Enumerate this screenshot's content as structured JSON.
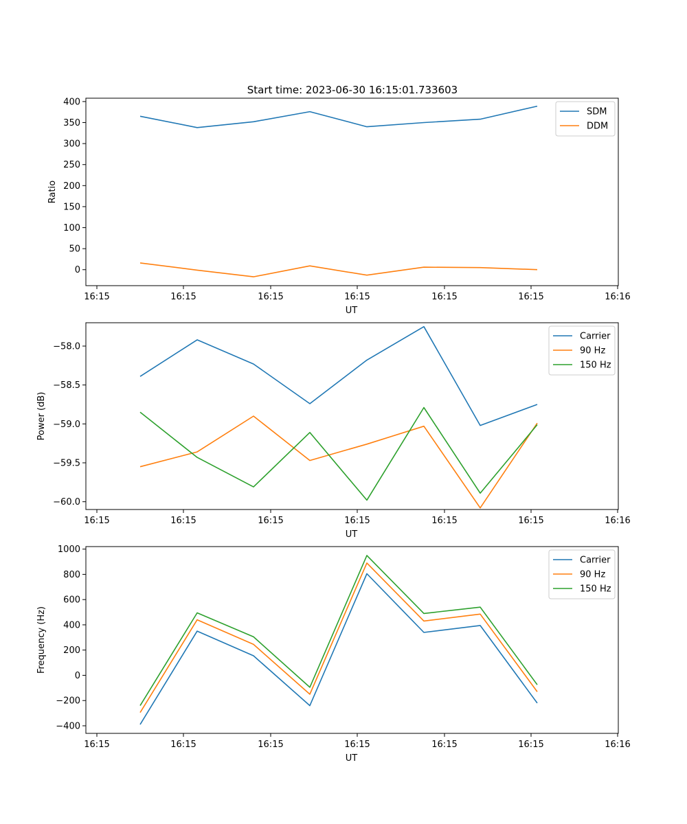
{
  "figure_title": "Start time: 2023-06-30 16:15:01.733603",
  "chart_data": [
    {
      "type": "line",
      "title": "Start time: 2023-06-30 16:15:01.733603",
      "xlabel": "UT",
      "ylabel": "Ratio",
      "x_tick_labels": [
        "16:15",
        "16:15",
        "16:15",
        "16:15",
        "16:15",
        "16:15",
        "16:16"
      ],
      "y_ticks": [
        0,
        50,
        100,
        150,
        200,
        250,
        300,
        350,
        400
      ],
      "ylim": [
        -38,
        408
      ],
      "legend_position": "upper right",
      "series": [
        {
          "name": "SDM",
          "color": "#1f77b4",
          "values": [
            365,
            338,
            352,
            376,
            340,
            350,
            358,
            389
          ]
        },
        {
          "name": "DDM",
          "color": "#ff7f0e",
          "values": [
            16,
            -1,
            -17,
            9,
            -13,
            6,
            5,
            0
          ]
        }
      ]
    },
    {
      "type": "line",
      "title": "",
      "xlabel": "UT",
      "ylabel": "Power (dB)",
      "x_tick_labels": [
        "16:15",
        "16:15",
        "16:15",
        "16:15",
        "16:15",
        "16:15",
        "16:16"
      ],
      "y_ticks": [
        -60.0,
        -59.5,
        -59.0,
        -58.5,
        -58.0
      ],
      "y_tick_labels": [
        "−60.0",
        "−59.5",
        "−59.0",
        "−58.5",
        "−58.0"
      ],
      "ylim": [
        -60.1,
        -57.7
      ],
      "legend_position": "upper right",
      "series": [
        {
          "name": "Carrier",
          "color": "#1f77b4",
          "values": [
            -58.39,
            -57.92,
            -58.23,
            -58.74,
            -58.18,
            -57.75,
            -59.02,
            -58.75
          ]
        },
        {
          "name": "90 Hz",
          "color": "#ff7f0e",
          "values": [
            -59.55,
            -59.36,
            -58.9,
            -59.47,
            -59.26,
            -59.03,
            -60.08,
            -58.99
          ]
        },
        {
          "name": "150 Hz",
          "color": "#2ca02c",
          "values": [
            -58.85,
            -59.43,
            -59.81,
            -59.11,
            -59.98,
            -58.79,
            -59.89,
            -59.01
          ]
        }
      ]
    },
    {
      "type": "line",
      "title": "",
      "xlabel": "UT",
      "ylabel": "Frequency (Hz)",
      "x_tick_labels": [
        "16:15",
        "16:15",
        "16:15",
        "16:15",
        "16:15",
        "16:15",
        "16:16"
      ],
      "y_ticks": [
        -400,
        -200,
        0,
        200,
        400,
        600,
        800,
        1000
      ],
      "y_tick_labels": [
        "−400",
        "−200",
        "0",
        "200",
        "400",
        "600",
        "800",
        "1000"
      ],
      "ylim": [
        -460,
        1020
      ],
      "legend_position": "upper right",
      "series": [
        {
          "name": "Carrier",
          "color": "#1f77b4",
          "values": [
            -390,
            350,
            155,
            -240,
            805,
            340,
            395,
            -220
          ]
        },
        {
          "name": "90 Hz",
          "color": "#ff7f0e",
          "values": [
            -295,
            440,
            245,
            -150,
            890,
            430,
            485,
            -130
          ]
        },
        {
          "name": "150 Hz",
          "color": "#2ca02c",
          "values": [
            -240,
            495,
            305,
            -95,
            950,
            490,
            540,
            -75
          ]
        }
      ]
    }
  ]
}
